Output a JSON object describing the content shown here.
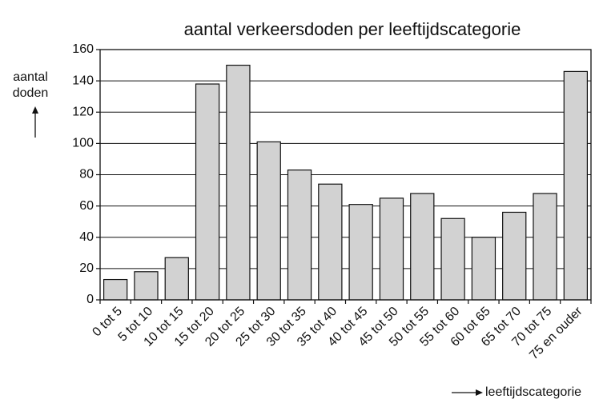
{
  "chart_data": {
    "type": "bar",
    "title": "aantal verkeersdoden per leeftijdscategorie",
    "ylabel": [
      "aantal",
      "doden"
    ],
    "xlabel": "leeftijdscategorie",
    "categories": [
      "0 tot 5",
      "5 tot 10",
      "10 tot 15",
      "15 tot 20",
      "20 tot 25",
      "25 tot 30",
      "30 tot 35",
      "35 tot 40",
      "40 tot 45",
      "45 tot 50",
      "50 tot 55",
      "55 tot 60",
      "60 tot 65",
      "65 tot 70",
      "70 tot 75",
      "75 en ouder"
    ],
    "values": [
      13,
      18,
      27,
      138,
      150,
      101,
      83,
      74,
      61,
      65,
      68,
      52,
      40,
      56,
      68,
      146
    ],
    "color": "#d2d2d2",
    "ylim": [
      0,
      160
    ],
    "yticks": [
      0,
      20,
      40,
      60,
      80,
      100,
      120,
      140,
      160
    ],
    "grid": true
  }
}
